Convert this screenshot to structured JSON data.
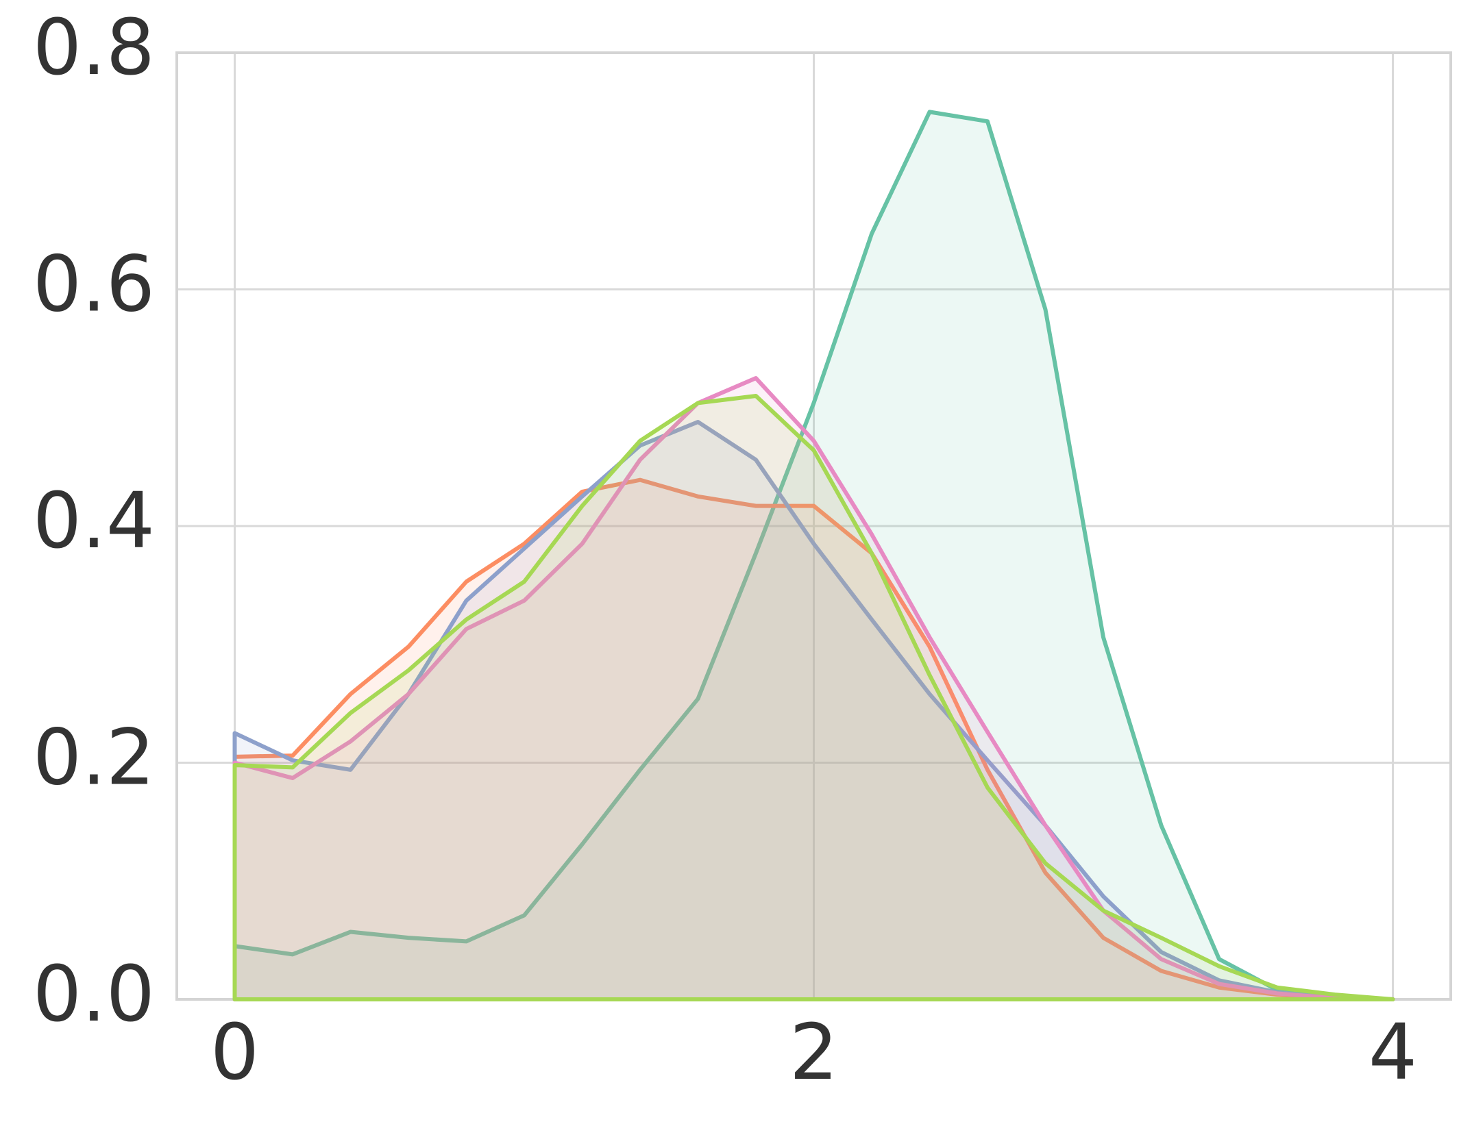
{
  "chart_data": {
    "type": "area",
    "x": [
      0,
      0.2,
      0.4,
      0.6,
      0.8,
      1.0,
      1.2,
      1.4,
      1.6,
      1.8,
      2.0,
      2.2,
      2.4,
      2.6,
      2.8,
      3.0,
      3.2,
      3.4,
      3.6,
      3.8,
      4.0
    ],
    "series": [
      {
        "color": "#66c2a5",
        "values": [
          0.045,
          0.038,
          0.057,
          0.052,
          0.049,
          0.071,
          0.131,
          0.194,
          0.254,
          0.377,
          0.504,
          0.647,
          0.75,
          0.742,
          0.583,
          0.306,
          0.147,
          0.034,
          0.008,
          0.002,
          0
        ]
      },
      {
        "color": "#fc8d62",
        "values": [
          0.205,
          0.206,
          0.258,
          0.298,
          0.353,
          0.385,
          0.429,
          0.439,
          0.425,
          0.417,
          0.417,
          0.377,
          0.298,
          0.194,
          0.107,
          0.052,
          0.024,
          0.01,
          0.004,
          0.001,
          0
        ]
      },
      {
        "color": "#8da0cb",
        "values": [
          0.225,
          0.202,
          0.194,
          0.258,
          0.337,
          0.381,
          0.425,
          0.468,
          0.488,
          0.456,
          0.385,
          0.321,
          0.258,
          0.202,
          0.147,
          0.087,
          0.04,
          0.016,
          0.006,
          0.001,
          0
        ]
      },
      {
        "color": "#e78ac3",
        "values": [
          0.2,
          0.187,
          0.218,
          0.258,
          0.313,
          0.337,
          0.385,
          0.456,
          0.504,
          0.525,
          0.472,
          0.393,
          0.306,
          0.226,
          0.147,
          0.075,
          0.034,
          0.013,
          0.005,
          0.001,
          0
        ]
      },
      {
        "color": "#a6d854",
        "values": [
          0.198,
          0.196,
          0.242,
          0.278,
          0.321,
          0.353,
          0.417,
          0.472,
          0.504,
          0.51,
          0.464,
          0.377,
          0.274,
          0.179,
          0.115,
          0.075,
          0.052,
          0.028,
          0.01,
          0.004,
          0
        ]
      }
    ],
    "xlim": [
      -0.2,
      4.2
    ],
    "xticks": [
      0,
      2,
      4
    ],
    "ylim": [
      0,
      0.8
    ],
    "yticks": [
      {
        "value": 0,
        "label": "0.0"
      },
      0.2,
      0.4,
      0.6,
      0.8
    ],
    "grid": true
  }
}
